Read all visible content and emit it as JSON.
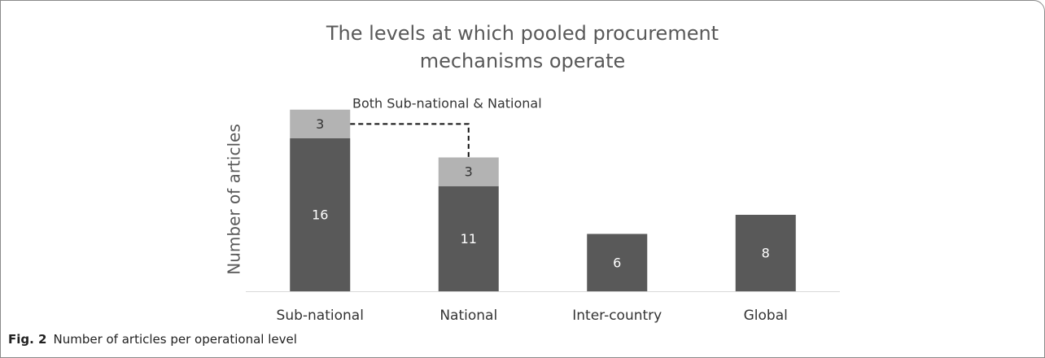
{
  "chart_data": {
    "type": "bar",
    "stacked": true,
    "title": "The levels at which pooled procurement mechanisms operate",
    "y_label": "Number of articles",
    "annotation": "Both Sub-national & National",
    "categories": [
      "Sub-national",
      "National",
      "Inter-country",
      "Global"
    ],
    "series": [
      {
        "color": "#595959",
        "values": [
          16,
          11,
          6,
          8
        ]
      },
      {
        "color": "#b3b3b3",
        "values": [
          3,
          3,
          null,
          null
        ]
      }
    ],
    "ylim": [
      0,
      20
    ]
  },
  "caption": {
    "label": "Fig. 2",
    "text": "Number of articles per operational level"
  }
}
